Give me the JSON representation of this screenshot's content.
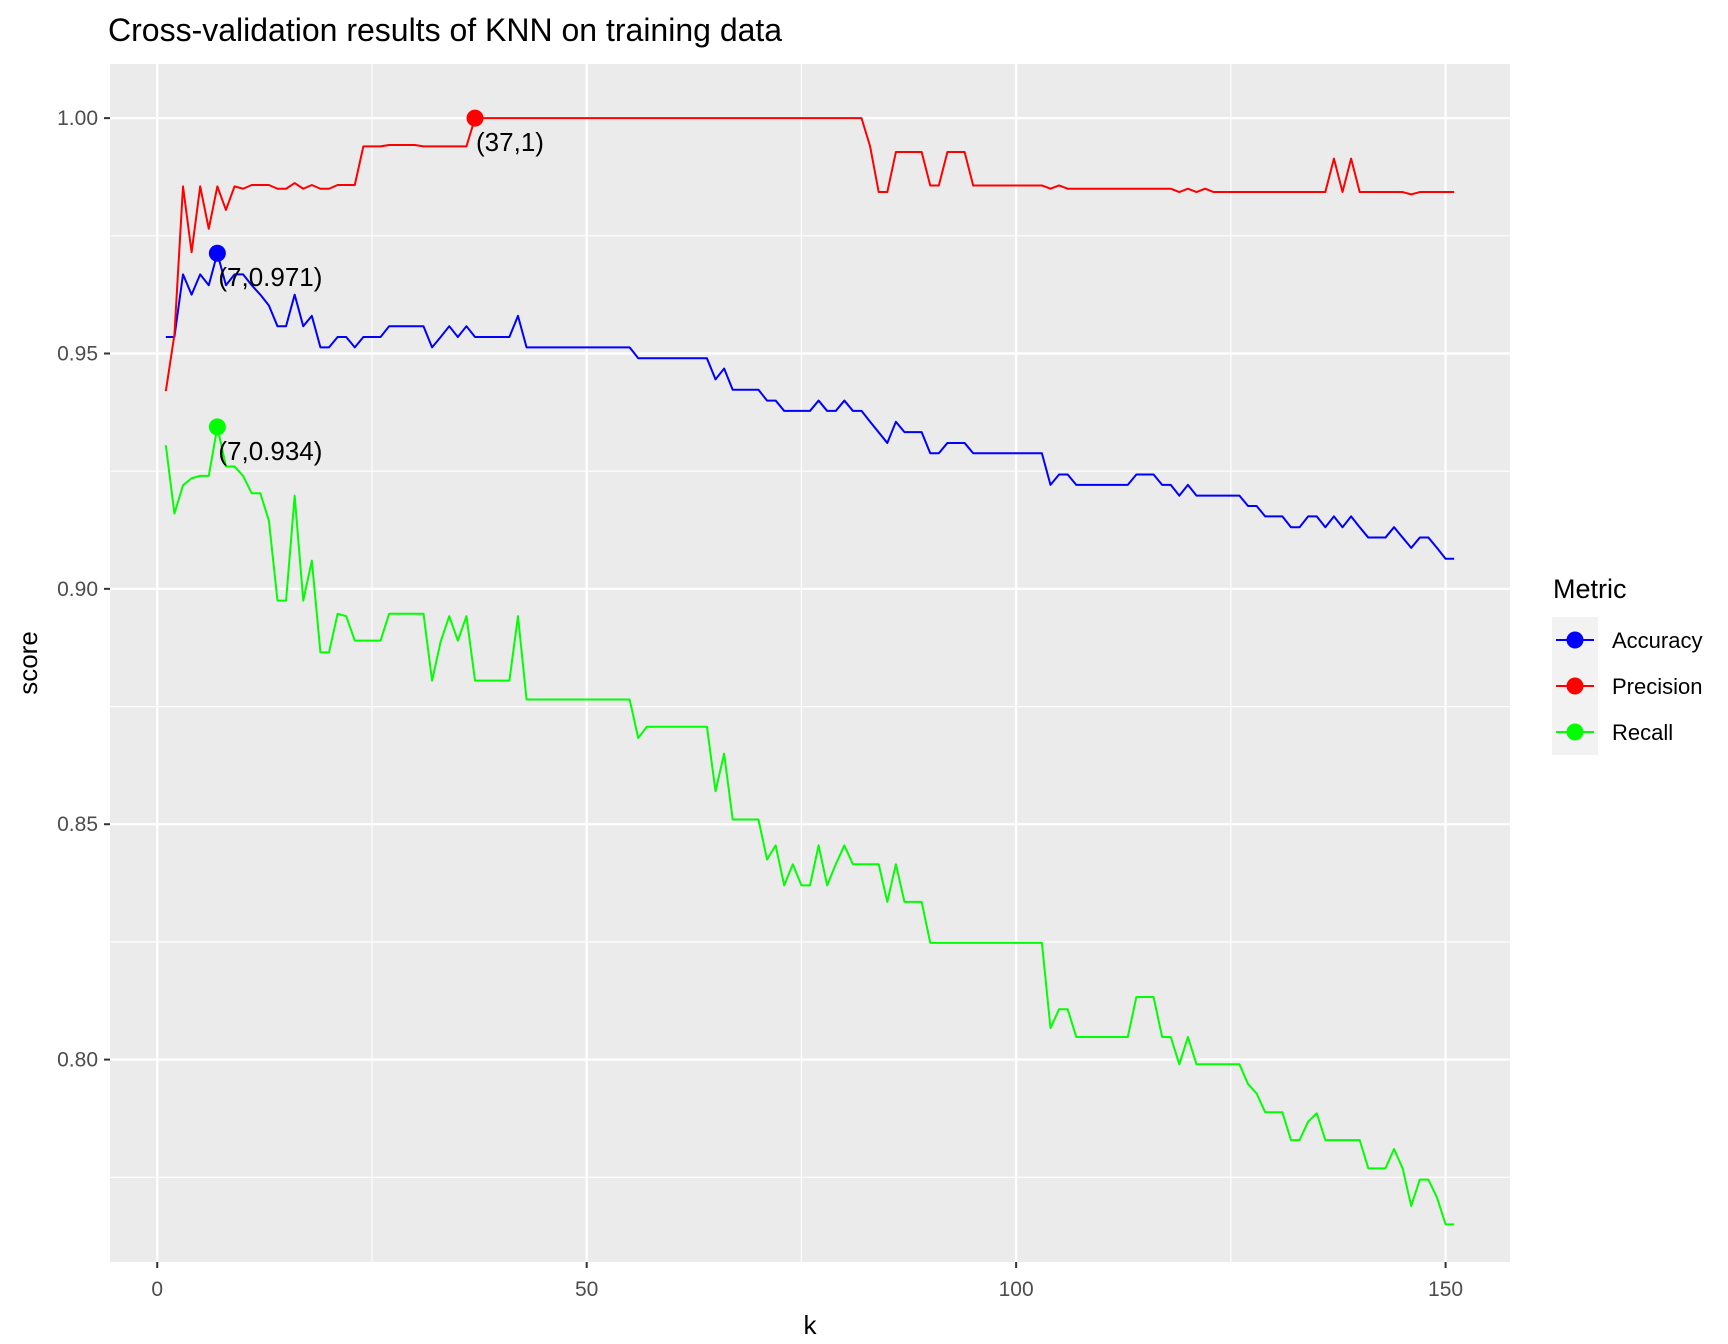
{
  "chart_data": {
    "type": "line",
    "title": "Cross-validation results of KNN on training data",
    "xlabel": "k",
    "ylabel": "score",
    "xlim": [
      -5.5,
      157.5
    ],
    "ylim": [
      0.757,
      1.0115
    ],
    "x_ticks": [
      0,
      50,
      100,
      150
    ],
    "x_tick_labels": [
      "0",
      "50",
      "100",
      "150"
    ],
    "y_ticks": [
      0.8,
      0.85,
      0.9,
      0.95,
      1.0
    ],
    "y_tick_labels": [
      "0.80",
      "0.85",
      "0.90",
      "0.95",
      "1.00"
    ],
    "grid": true,
    "legend": {
      "title": "Metric",
      "position": "right",
      "entries": [
        "Accuracy",
        "Precision",
        "Recall"
      ]
    },
    "series": [
      {
        "name": "Accuracy",
        "color": "#0000ff",
        "points": [
          [
            1,
            0.9535
          ],
          [
            2,
            0.9535
          ],
          [
            3,
            0.9668
          ],
          [
            4,
            0.9625
          ],
          [
            5,
            0.9668
          ],
          [
            6,
            0.9645
          ],
          [
            7,
            0.9713
          ],
          [
            8,
            0.9645
          ],
          [
            9,
            0.9668
          ],
          [
            10,
            0.9668
          ],
          [
            11,
            0.9645
          ],
          [
            12,
            0.9625
          ],
          [
            13,
            0.9602
          ],
          [
            14,
            0.9558
          ],
          [
            15,
            0.9558
          ],
          [
            16,
            0.9625
          ],
          [
            17,
            0.9558
          ],
          [
            18,
            0.958
          ],
          [
            19,
            0.9513
          ],
          [
            20,
            0.9513
          ],
          [
            21,
            0.9535
          ],
          [
            22,
            0.9535
          ],
          [
            23,
            0.9513
          ],
          [
            24,
            0.9535
          ],
          [
            25,
            0.9535
          ],
          [
            26,
            0.9535
          ],
          [
            27,
            0.9558
          ],
          [
            28,
            0.9558
          ],
          [
            29,
            0.9558
          ],
          [
            30,
            0.9558
          ],
          [
            31,
            0.9558
          ],
          [
            32,
            0.9513
          ],
          [
            33,
            0.9535
          ],
          [
            34,
            0.9558
          ],
          [
            35,
            0.9535
          ],
          [
            36,
            0.9558
          ],
          [
            37,
            0.9535
          ],
          [
            38,
            0.9535
          ],
          [
            39,
            0.9535
          ],
          [
            40,
            0.9535
          ],
          [
            41,
            0.9535
          ],
          [
            42,
            0.958
          ],
          [
            43,
            0.9513
          ],
          [
            50,
            0.9513
          ],
          [
            55,
            0.9513
          ],
          [
            56,
            0.949
          ],
          [
            60,
            0.949
          ],
          [
            64,
            0.949
          ],
          [
            65,
            0.9445
          ],
          [
            66,
            0.9468
          ],
          [
            67,
            0.9423
          ],
          [
            70,
            0.9423
          ],
          [
            71,
            0.94
          ],
          [
            72,
            0.94
          ],
          [
            73,
            0.9378
          ],
          [
            76,
            0.9378
          ],
          [
            77,
            0.94
          ],
          [
            78,
            0.9378
          ],
          [
            79,
            0.9378
          ],
          [
            80,
            0.94
          ],
          [
            81,
            0.9378
          ],
          [
            82,
            0.9378
          ],
          [
            83,
            0.9355
          ],
          [
            85,
            0.931
          ],
          [
            86,
            0.9355
          ],
          [
            87,
            0.9333
          ],
          [
            89,
            0.9333
          ],
          [
            90,
            0.9288
          ],
          [
            91,
            0.9288
          ],
          [
            92,
            0.931
          ],
          [
            94,
            0.931
          ],
          [
            95,
            0.9288
          ],
          [
            103,
            0.9288
          ],
          [
            104,
            0.9221
          ],
          [
            105,
            0.9243
          ],
          [
            106,
            0.9243
          ],
          [
            107,
            0.9221
          ],
          [
            113,
            0.9221
          ],
          [
            114,
            0.9243
          ],
          [
            116,
            0.9243
          ],
          [
            117,
            0.9221
          ],
          [
            118,
            0.9221
          ],
          [
            119,
            0.9198
          ],
          [
            120,
            0.9221
          ],
          [
            121,
            0.9198
          ],
          [
            126,
            0.9198
          ],
          [
            127,
            0.9176
          ],
          [
            128,
            0.9176
          ],
          [
            129,
            0.9154
          ],
          [
            131,
            0.9154
          ],
          [
            132,
            0.9131
          ],
          [
            133,
            0.9131
          ],
          [
            134,
            0.9154
          ],
          [
            135,
            0.9154
          ],
          [
            136,
            0.9131
          ],
          [
            137,
            0.9154
          ],
          [
            138,
            0.9131
          ],
          [
            139,
            0.9154
          ],
          [
            140,
            0.9131
          ],
          [
            141,
            0.9109
          ],
          [
            143,
            0.9109
          ],
          [
            144,
            0.9131
          ],
          [
            145,
            0.9109
          ],
          [
            146,
            0.9087
          ],
          [
            147,
            0.9109
          ],
          [
            148,
            0.9109
          ],
          [
            149,
            0.9087
          ],
          [
            150,
            0.9064
          ],
          [
            151,
            0.9064
          ]
        ],
        "highlight": {
          "k": 7,
          "score": 0.9713,
          "label": "(7,0.971)"
        }
      },
      {
        "name": "Precision",
        "color": "#ff0000",
        "points": [
          [
            1,
            0.942
          ],
          [
            2,
            0.954
          ],
          [
            3,
            0.9855
          ],
          [
            4,
            0.9715
          ],
          [
            5,
            0.9855
          ],
          [
            6,
            0.9765
          ],
          [
            7,
            0.9855
          ],
          [
            8,
            0.9805
          ],
          [
            9,
            0.9855
          ],
          [
            10,
            0.985
          ],
          [
            11,
            0.9858
          ],
          [
            12,
            0.9858
          ],
          [
            13,
            0.9858
          ],
          [
            14,
            0.985
          ],
          [
            15,
            0.985
          ],
          [
            16,
            0.9862
          ],
          [
            17,
            0.985
          ],
          [
            18,
            0.9858
          ],
          [
            19,
            0.985
          ],
          [
            20,
            0.985
          ],
          [
            21,
            0.9858
          ],
          [
            22,
            0.9858
          ],
          [
            23,
            0.9858
          ],
          [
            24,
            0.994
          ],
          [
            25,
            0.994
          ],
          [
            26,
            0.994
          ],
          [
            27,
            0.9943
          ],
          [
            30,
            0.9943
          ],
          [
            31,
            0.994
          ],
          [
            36,
            0.994
          ],
          [
            37,
            1.0
          ],
          [
            50,
            1.0
          ],
          [
            82,
            1.0
          ],
          [
            83,
            0.994
          ],
          [
            84,
            0.9843
          ],
          [
            85,
            0.9843
          ],
          [
            86,
            0.9928
          ],
          [
            89,
            0.9928
          ],
          [
            90,
            0.9857
          ],
          [
            91,
            0.9857
          ],
          [
            92,
            0.9928
          ],
          [
            94,
            0.9928
          ],
          [
            95,
            0.9857
          ],
          [
            103,
            0.9857
          ],
          [
            104,
            0.985
          ],
          [
            105,
            0.9857
          ],
          [
            106,
            0.985
          ],
          [
            118,
            0.985
          ],
          [
            119,
            0.9843
          ],
          [
            120,
            0.985
          ],
          [
            121,
            0.9843
          ],
          [
            122,
            0.985
          ],
          [
            123,
            0.9843
          ],
          [
            136,
            0.9843
          ],
          [
            137,
            0.9914
          ],
          [
            138,
            0.9843
          ],
          [
            139,
            0.9914
          ],
          [
            140,
            0.9843
          ],
          [
            145,
            0.9843
          ],
          [
            146,
            0.9838
          ],
          [
            147,
            0.9843
          ],
          [
            151,
            0.9843
          ]
        ],
        "highlight": {
          "k": 37,
          "score": 1.0,
          "label": "(37,1)"
        }
      },
      {
        "name": "Recall",
        "color": "#00ff00",
        "points": [
          [
            1,
            0.9305
          ],
          [
            2,
            0.916
          ],
          [
            3,
            0.922
          ],
          [
            4,
            0.9235
          ],
          [
            5,
            0.924
          ],
          [
            6,
            0.924
          ],
          [
            7,
            0.9344
          ],
          [
            8,
            0.926
          ],
          [
            9,
            0.926
          ],
          [
            10,
            0.924
          ],
          [
            11,
            0.9203
          ],
          [
            12,
            0.9203
          ],
          [
            13,
            0.9145
          ],
          [
            14,
            0.8975
          ],
          [
            15,
            0.8975
          ],
          [
            16,
            0.9198
          ],
          [
            17,
            0.8975
          ],
          [
            18,
            0.906
          ],
          [
            19,
            0.8865
          ],
          [
            20,
            0.8865
          ],
          [
            21,
            0.8947
          ],
          [
            22,
            0.8942
          ],
          [
            23,
            0.889
          ],
          [
            24,
            0.889
          ],
          [
            25,
            0.889
          ],
          [
            26,
            0.889
          ],
          [
            27,
            0.8947
          ],
          [
            28,
            0.8947
          ],
          [
            29,
            0.8947
          ],
          [
            30,
            0.8947
          ],
          [
            31,
            0.8947
          ],
          [
            32,
            0.8805
          ],
          [
            33,
            0.8888
          ],
          [
            34,
            0.8942
          ],
          [
            35,
            0.889
          ],
          [
            36,
            0.8942
          ],
          [
            37,
            0.8805
          ],
          [
            38,
            0.8805
          ],
          [
            39,
            0.8805
          ],
          [
            40,
            0.8805
          ],
          [
            41,
            0.8805
          ],
          [
            42,
            0.8942
          ],
          [
            43,
            0.8765
          ],
          [
            50,
            0.8765
          ],
          [
            55,
            0.8765
          ],
          [
            56,
            0.8683
          ],
          [
            57,
            0.8707
          ],
          [
            60,
            0.8707
          ],
          [
            64,
            0.8707
          ],
          [
            65,
            0.857
          ],
          [
            66,
            0.865
          ],
          [
            67,
            0.851
          ],
          [
            70,
            0.851
          ],
          [
            71,
            0.8425
          ],
          [
            72,
            0.8455
          ],
          [
            73,
            0.837
          ],
          [
            74,
            0.8415
          ],
          [
            75,
            0.837
          ],
          [
            76,
            0.837
          ],
          [
            77,
            0.8455
          ],
          [
            78,
            0.837
          ],
          [
            79,
            0.8415
          ],
          [
            80,
            0.8455
          ],
          [
            81,
            0.8415
          ],
          [
            84,
            0.8415
          ],
          [
            85,
            0.8335
          ],
          [
            86,
            0.8415
          ],
          [
            87,
            0.8335
          ],
          [
            89,
            0.8335
          ],
          [
            90,
            0.8248
          ],
          [
            103,
            0.8248
          ],
          [
            104,
            0.8067
          ],
          [
            105,
            0.8107
          ],
          [
            106,
            0.8107
          ],
          [
            107,
            0.8048
          ],
          [
            113,
            0.8048
          ],
          [
            114,
            0.8133
          ],
          [
            116,
            0.8133
          ],
          [
            117,
            0.8048
          ],
          [
            118,
            0.8048
          ],
          [
            119,
            0.799
          ],
          [
            120,
            0.8048
          ],
          [
            121,
            0.799
          ],
          [
            126,
            0.799
          ],
          [
            127,
            0.7948
          ],
          [
            128,
            0.7928
          ],
          [
            129,
            0.7888
          ],
          [
            131,
            0.7888
          ],
          [
            132,
            0.7829
          ],
          [
            133,
            0.7829
          ],
          [
            134,
            0.7868
          ],
          [
            135,
            0.7886
          ],
          [
            136,
            0.7829
          ],
          [
            140,
            0.7829
          ],
          [
            141,
            0.7769
          ],
          [
            143,
            0.7769
          ],
          [
            144,
            0.781
          ],
          [
            145,
            0.7769
          ],
          [
            146,
            0.7689
          ],
          [
            147,
            0.7745
          ],
          [
            148,
            0.7745
          ],
          [
            149,
            0.7707
          ],
          [
            150,
            0.765
          ],
          [
            151,
            0.765
          ]
        ],
        "highlight": {
          "k": 7,
          "score": 0.9344,
          "label": "(7,0.934)"
        }
      }
    ]
  }
}
